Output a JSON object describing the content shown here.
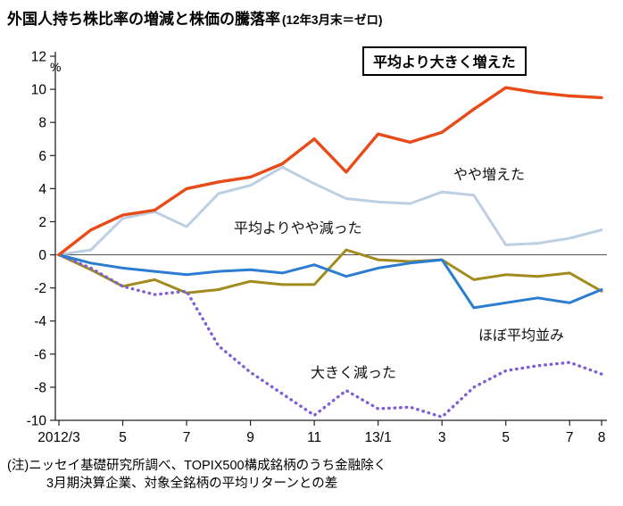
{
  "title": "外国人持ち株比率の増減と株価の騰落率",
  "title_suffix": "(12年3月末＝ゼロ)",
  "note_line1": "(注)ニッセイ基礎研究所調べ、TOPIX500構成銘柄のうち金融除く",
  "note_line2": "3月期決算企業、対象全銘柄の平均リターンとの差",
  "chart_data": {
    "type": "line",
    "title": "外国人持ち株比率の増減と株価の騰落率(12年3月末＝ゼロ)",
    "ylabel": "%",
    "xlabel": "",
    "ylim": [
      -10,
      12
    ],
    "ytick_step": 2,
    "grid": false,
    "legend_position": "inline-annotations",
    "y_ticks": [
      12,
      10,
      8,
      6,
      4,
      2,
      0,
      -2,
      -4,
      -6,
      -8,
      -10
    ],
    "x_categories": [
      "2012/3",
      "2012/4",
      "2012/5",
      "2012/6",
      "2012/7",
      "2012/8",
      "2012/9",
      "2012/10",
      "2012/11",
      "2012/12",
      "2013/1",
      "2013/2",
      "2013/3",
      "2013/4",
      "2013/5",
      "2013/6",
      "2013/7",
      "2013/8"
    ],
    "x_ticks": [
      {
        "i": 0,
        "label": "2012/3"
      },
      {
        "i": 2,
        "label": "5"
      },
      {
        "i": 4,
        "label": "7"
      },
      {
        "i": 6,
        "label": "9"
      },
      {
        "i": 8,
        "label": "11"
      },
      {
        "i": 10,
        "label": "13/1"
      },
      {
        "i": 12,
        "label": "3"
      },
      {
        "i": 14,
        "label": "5"
      },
      {
        "i": 16,
        "label": "7"
      },
      {
        "i": 17,
        "label": "8"
      }
    ],
    "series": [
      {
        "name": "平均より大きく増えた",
        "color": "#e84b17",
        "style": "solid",
        "values": [
          0,
          1.5,
          2.4,
          2.7,
          4.0,
          4.4,
          4.7,
          5.5,
          7.0,
          5.0,
          7.3,
          6.8,
          7.4,
          8.8,
          10.1,
          9.8,
          9.6,
          9.5
        ]
      },
      {
        "name": "やや増えた",
        "color": "#bccfe3",
        "style": "solid",
        "values": [
          0,
          0.3,
          2.2,
          2.6,
          1.7,
          3.7,
          4.2,
          5.3,
          4.3,
          3.4,
          3.2,
          3.1,
          3.8,
          3.6,
          0.6,
          0.7,
          1.0,
          1.5
        ]
      },
      {
        "name": "平均よりやや減った",
        "color": "#a28b1e",
        "style": "solid",
        "values": [
          0,
          -0.9,
          -1.9,
          -1.5,
          -2.3,
          -2.1,
          -1.6,
          -1.8,
          -1.8,
          0.3,
          -0.3,
          -0.4,
          -0.3,
          -1.5,
          -1.2,
          -1.3,
          -1.1,
          -2.2
        ]
      },
      {
        "name": "ほぼ平均並み",
        "color": "#2b7cd3",
        "style": "solid",
        "values": [
          0,
          -0.5,
          -0.8,
          -1.0,
          -1.2,
          -1.0,
          -0.9,
          -1.1,
          -0.6,
          -1.3,
          -0.8,
          -0.5,
          -0.3,
          -3.2,
          -2.9,
          -2.6,
          -2.9,
          -2.1
        ]
      },
      {
        "name": "大きく減った",
        "color": "#7e5fd6",
        "style": "dotted",
        "values": [
          0,
          -0.8,
          -1.9,
          -2.4,
          -2.2,
          -5.5,
          -7.1,
          -8.4,
          -9.7,
          -8.2,
          -9.3,
          -9.2,
          -9.8,
          -8.0,
          -7.0,
          -6.7,
          -6.5,
          -7.2
        ]
      }
    ]
  }
}
